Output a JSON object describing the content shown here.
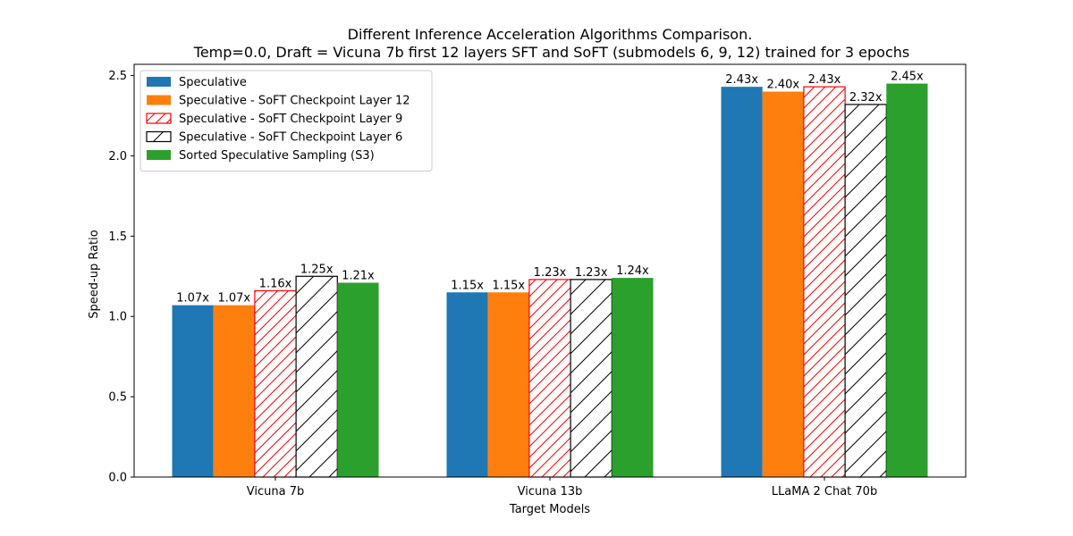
{
  "chart_data": {
    "type": "bar",
    "title": "Different Inference Acceleration Algorithms Comparison.",
    "subtitle": "Temp=0.0, Draft = Vicuna 7b first 12 layers SFT and SoFT (submodels 6, 9, 12) trained for 3 epochs",
    "xlabel": "Target Models",
    "ylabel": "Speed-up Ratio",
    "ylim": [
      0,
      2.57
    ],
    "yticks": [
      "0.0",
      "0.5",
      "1.0",
      "1.5",
      "2.0",
      "2.5"
    ],
    "categories": [
      "Vicuna 7b",
      "Vicuna 13b",
      "LLaMA 2 Chat 70b"
    ],
    "legend_position": "top-left",
    "series": [
      {
        "name": "Speculative",
        "values": [
          1.07,
          1.15,
          2.43
        ],
        "labels": [
          "1.07x",
          "1.15x",
          "2.43x"
        ],
        "fill": "#1f77b4",
        "edge": "#1f77b4",
        "hatch": "none"
      },
      {
        "name": "Speculative - SoFT Checkpoint Layer 12",
        "values": [
          1.07,
          1.15,
          2.4
        ],
        "labels": [
          "1.07x",
          "1.15x",
          "2.40x"
        ],
        "fill": "#ff7f0e",
        "edge": "#ff7f0e",
        "hatch": "none"
      },
      {
        "name": "Speculative - SoFT Checkpoint Layer 9",
        "values": [
          1.16,
          1.23,
          2.43
        ],
        "labels": [
          "1.16x",
          "1.23x",
          "2.43x"
        ],
        "fill": "#ffffff",
        "edge": "#ff0000",
        "hatch": "diagonal"
      },
      {
        "name": "Speculative - SoFT Checkpoint Layer 6",
        "values": [
          1.25,
          1.23,
          2.32
        ],
        "labels": [
          "1.25x",
          "1.23x",
          "2.32x"
        ],
        "fill": "#ffffff",
        "edge": "#000000",
        "hatch": "diagonal"
      },
      {
        "name": "Sorted Speculative Sampling (S3)",
        "values": [
          1.21,
          1.24,
          2.45
        ],
        "labels": [
          "1.21x",
          "1.24x",
          "2.45x"
        ],
        "fill": "#2ca02c",
        "edge": "#2ca02c",
        "hatch": "none"
      }
    ]
  }
}
